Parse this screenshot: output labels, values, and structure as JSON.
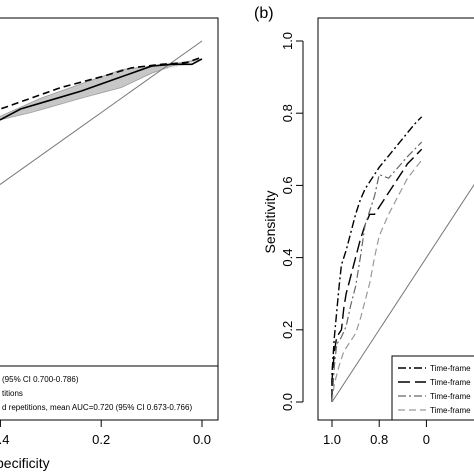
{
  "chart_data": [
    {
      "panel": "a",
      "type": "line",
      "xlabel": "pecificity",
      "x_reversed": true,
      "xlim": [
        1.0,
        0.0
      ],
      "ylim": [
        0.0,
        1.0
      ],
      "x_ticks": [
        {
          "value": 0.4,
          "label": "0.4"
        },
        {
          "value": 0.2,
          "label": "0.2"
        },
        {
          "value": 0.0,
          "label": "0.0"
        }
      ],
      "reference_line": true,
      "band": {
        "color": "#9a9a9a",
        "upper": [
          [
            0.56,
            0.67
          ],
          [
            0.5,
            0.73
          ],
          [
            0.46,
            0.76
          ],
          [
            0.4,
            0.79
          ],
          [
            0.32,
            0.84
          ],
          [
            0.22,
            0.89
          ],
          [
            0.16,
            0.92
          ],
          [
            0.1,
            0.93
          ],
          [
            0.04,
            0.94
          ],
          [
            0.0,
            0.95
          ]
        ],
        "lower": [
          [
            0.0,
            0.95
          ],
          [
            0.06,
            0.93
          ],
          [
            0.1,
            0.91
          ],
          [
            0.16,
            0.87
          ],
          [
            0.24,
            0.84
          ],
          [
            0.34,
            0.8
          ],
          [
            0.4,
            0.78
          ],
          [
            0.44,
            0.75
          ],
          [
            0.5,
            0.7
          ],
          [
            0.56,
            0.64
          ]
        ]
      },
      "series": [
        {
          "style": "dashed",
          "color": "#000000",
          "points": [
            [
              0.56,
              0.72
            ],
            [
              0.5,
              0.76
            ],
            [
              0.44,
              0.79
            ],
            [
              0.36,
              0.83
            ],
            [
              0.28,
              0.87
            ],
            [
              0.2,
              0.9
            ],
            [
              0.14,
              0.925
            ],
            [
              0.08,
              0.935
            ],
            [
              0.03,
              0.94
            ],
            [
              0.0,
              0.955
            ]
          ]
        },
        {
          "style": "solid",
          "color": "#000000",
          "points": [
            [
              0.56,
              0.66
            ],
            [
              0.52,
              0.71
            ],
            [
              0.48,
              0.75
            ],
            [
              0.44,
              0.78
            ],
            [
              0.4,
              0.78
            ],
            [
              0.36,
              0.81
            ],
            [
              0.3,
              0.835
            ],
            [
              0.24,
              0.86
            ],
            [
              0.18,
              0.89
            ],
            [
              0.14,
              0.91
            ],
            [
              0.1,
              0.93
            ],
            [
              0.06,
              0.935
            ],
            [
              0.02,
              0.935
            ],
            [
              0.0,
              0.95
            ]
          ]
        }
      ],
      "legend_lines": [
        "(95% CI 0.700-0.786)",
        "titions",
        "d repetitions, mean AUC=0.720 (95% CI 0.673-0.766)"
      ]
    },
    {
      "panel": "b",
      "panel_label": "(b)",
      "type": "line",
      "ylabel": "Sensitivity",
      "x_reversed": true,
      "xlim": [
        1.0,
        0.0
      ],
      "ylim": [
        0.0,
        1.0
      ],
      "y_ticks": [
        {
          "value": 0.0,
          "label": "0.0"
        },
        {
          "value": 0.2,
          "label": "0.2"
        },
        {
          "value": 0.4,
          "label": "0.4"
        },
        {
          "value": 0.6,
          "label": "0.6"
        },
        {
          "value": 0.8,
          "label": "0.8"
        },
        {
          "value": 1.0,
          "label": "1.0"
        }
      ],
      "x_ticks": [
        {
          "value": 1.0,
          "label": "1.0"
        },
        {
          "value": 0.8,
          "label": "0.8"
        },
        {
          "value": 0.6,
          "label": "0"
        }
      ],
      "reference_line": true,
      "series": [
        {
          "style": "dashdot",
          "color": "#000000",
          "width": 1.4,
          "points": [
            [
              1.0,
              0.0
            ],
            [
              1.0,
              0.08
            ],
            [
              0.99,
              0.18
            ],
            [
              0.98,
              0.25
            ],
            [
              0.97,
              0.32
            ],
            [
              0.96,
              0.38
            ],
            [
              0.94,
              0.42
            ],
            [
              0.92,
              0.47
            ],
            [
              0.9,
              0.52
            ],
            [
              0.88,
              0.56
            ],
            [
              0.86,
              0.59
            ],
            [
              0.84,
              0.61
            ],
            [
              0.8,
              0.65
            ],
            [
              0.75,
              0.69
            ],
            [
              0.7,
              0.73
            ],
            [
              0.65,
              0.77
            ],
            [
              0.62,
              0.79
            ]
          ]
        },
        {
          "style": "longdash",
          "color": "#000000",
          "width": 1.4,
          "points": [
            [
              1.0,
              0.0
            ],
            [
              1.0,
              0.06
            ],
            [
              0.99,
              0.14
            ],
            [
              0.98,
              0.18
            ],
            [
              0.96,
              0.2
            ],
            [
              0.95,
              0.26
            ],
            [
              0.94,
              0.3
            ],
            [
              0.92,
              0.35
            ],
            [
              0.9,
              0.4
            ],
            [
              0.88,
              0.45
            ],
            [
              0.86,
              0.49
            ],
            [
              0.84,
              0.52
            ],
            [
              0.82,
              0.52
            ],
            [
              0.8,
              0.54
            ],
            [
              0.76,
              0.58
            ],
            [
              0.72,
              0.62
            ],
            [
              0.68,
              0.66
            ],
            [
              0.62,
              0.7
            ]
          ]
        },
        {
          "style": "dashdot",
          "color": "#666666",
          "width": 1.2,
          "points": [
            [
              1.0,
              0.0
            ],
            [
              0.99,
              0.1
            ],
            [
              0.98,
              0.16
            ],
            [
              0.96,
              0.18
            ],
            [
              0.94,
              0.21
            ],
            [
              0.92,
              0.27
            ],
            [
              0.9,
              0.32
            ],
            [
              0.88,
              0.4
            ],
            [
              0.86,
              0.49
            ],
            [
              0.84,
              0.53
            ],
            [
              0.82,
              0.57
            ],
            [
              0.8,
              0.63
            ],
            [
              0.76,
              0.62
            ],
            [
              0.72,
              0.65
            ],
            [
              0.68,
              0.68
            ],
            [
              0.62,
              0.72
            ]
          ]
        },
        {
          "style": "dashed",
          "color": "#999999",
          "width": 1.2,
          "points": [
            [
              1.0,
              0.0
            ],
            [
              0.99,
              0.05
            ],
            [
              0.97,
              0.1
            ],
            [
              0.95,
              0.14
            ],
            [
              0.92,
              0.17
            ],
            [
              0.9,
              0.19
            ],
            [
              0.88,
              0.23
            ],
            [
              0.86,
              0.28
            ],
            [
              0.84,
              0.33
            ],
            [
              0.82,
              0.4
            ],
            [
              0.8,
              0.46
            ],
            [
              0.76,
              0.52
            ],
            [
              0.72,
              0.57
            ],
            [
              0.68,
              0.62
            ],
            [
              0.62,
              0.67
            ]
          ]
        }
      ],
      "legend": [
        "Time-frame",
        "Time-frame",
        "Time-frame",
        "Time-frame"
      ]
    }
  ]
}
